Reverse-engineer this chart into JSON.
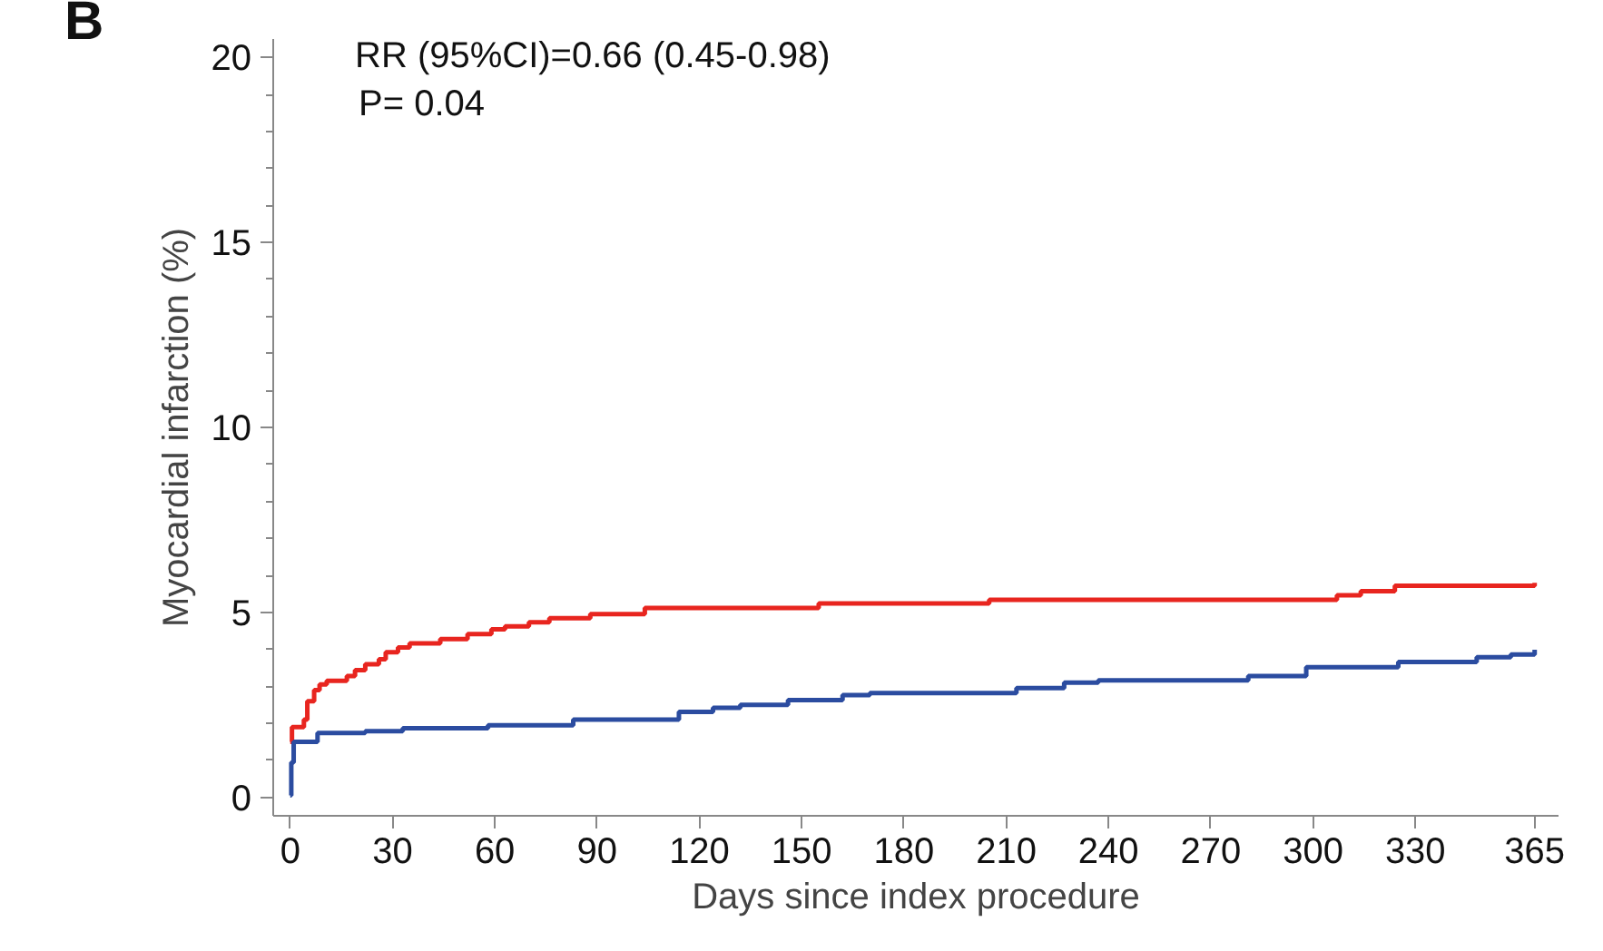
{
  "chart_data": {
    "type": "step",
    "xlabel": "Days since index procedure",
    "ylabel": "Myocardial infarction (%)",
    "annotations": [
      "B",
      "RR (95%CI)=0.66 (0.45-0.98)",
      "P= 0.04"
    ],
    "xlim": [
      -5,
      372
    ],
    "ylim": [
      -0.5,
      20.5
    ],
    "xticks": [
      0,
      30,
      60,
      90,
      120,
      150,
      180,
      210,
      240,
      270,
      300,
      330,
      365
    ],
    "yticks": [
      0,
      5,
      10,
      15,
      20
    ],
    "grid": false,
    "line_style": "solid",
    "marker": "none",
    "series": [
      {
        "color": "#e8251f",
        "x": [
          0,
          0.5,
          4,
          5,
          7,
          8.6,
          10.7,
          16.6,
          19,
          22,
          26,
          28,
          31.6,
          35,
          44,
          52,
          59,
          63,
          70,
          76,
          88,
          104,
          155,
          205,
          307,
          314,
          324,
          365
        ],
        "values": [
          1.5,
          1.9,
          2.1,
          2.6,
          2.9,
          3.05,
          3.15,
          3.28,
          3.44,
          3.6,
          3.73,
          3.92,
          4.05,
          4.16,
          4.28,
          4.41,
          4.54,
          4.62,
          4.73,
          4.84,
          4.95,
          5.12,
          5.24,
          5.34,
          5.46,
          5.57,
          5.72,
          5.8
        ]
      },
      {
        "color": "#2b4ca0",
        "x": [
          0,
          0.3,
          1,
          8,
          22,
          33,
          58,
          83,
          114,
          124,
          132,
          146,
          162,
          170,
          213,
          227,
          237,
          281,
          298,
          325,
          348,
          358,
          365
        ],
        "values": [
          0.05,
          0.94,
          1.5,
          1.74,
          1.79,
          1.87,
          1.95,
          2.1,
          2.31,
          2.42,
          2.5,
          2.63,
          2.76,
          2.82,
          2.95,
          3.1,
          3.16,
          3.28,
          3.52,
          3.66,
          3.79,
          3.86,
          3.99
        ]
      }
    ]
  }
}
